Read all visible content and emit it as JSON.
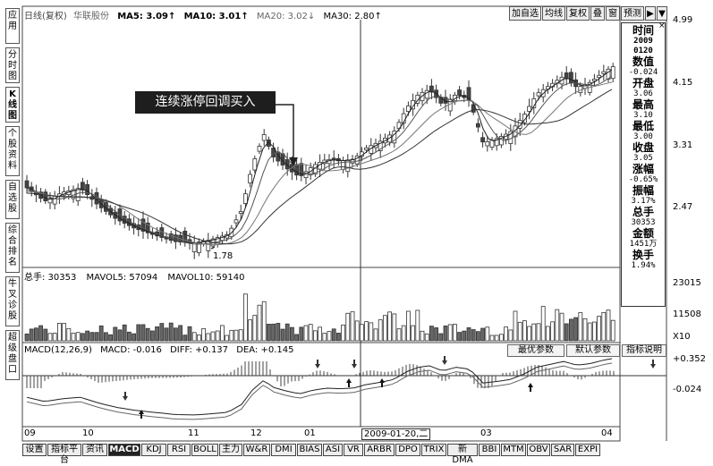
{
  "sidebar": {
    "items": [
      {
        "label": "应用",
        "active": false
      },
      {
        "label": "分时图",
        "active": false
      },
      {
        "label": "K线图",
        "active": true
      },
      {
        "label": "个股资料",
        "active": false
      },
      {
        "label": "自选股",
        "active": false
      },
      {
        "label": "综合排名",
        "active": false
      },
      {
        "label": "牛叉诊股",
        "active": false
      },
      {
        "label": "超级盘口",
        "active": false
      }
    ]
  },
  "chart_header": {
    "period": "日线(复权)",
    "stock": "华联股份",
    "ma5": "MA5: 3.09↑",
    "ma10": "MA10: 3.01↑",
    "ma20": "MA20: 3.02↓",
    "ma30": "MA30: 2.80↑"
  },
  "toolbar": {
    "buttons": [
      "加自选",
      "均线",
      "复权",
      "叠",
      "窗",
      "预测",
      "▶",
      "▼"
    ]
  },
  "price_axis": [
    "4.99",
    "4.15",
    "3.31",
    "2.47"
  ],
  "annotations": {
    "callout": "连续涨停回调买入",
    "low_price": "1.78"
  },
  "volume_header": {
    "total": "总手: 30353",
    "mavol5": "MAVOL5: 57094",
    "mavol10": "MAVOL10: 59140"
  },
  "volume_axis": [
    "23015",
    "11508",
    "X10"
  ],
  "macd_header": {
    "name": "MACD(12,26,9)",
    "macd": "MACD: -0.016",
    "diff": "DIFF: +0.137",
    "dea": "DEA: +0.145"
  },
  "macd_axis": [
    "+0.352",
    "-0.024"
  ],
  "panel_buttons": [
    "最优参数",
    "默认参数",
    "指标说明"
  ],
  "date_axis": {
    "ticks": [
      "09",
      "10",
      "11",
      "12",
      "01",
      "03",
      "04"
    ],
    "cursor_date": "2009-01-20,二"
  },
  "data_panel": {
    "items": [
      {
        "key": "时间",
        "value": "2009\n0120"
      },
      {
        "key": "数值",
        "value": "-0.024"
      },
      {
        "key": "开盘",
        "value": "3.06"
      },
      {
        "key": "最高",
        "value": "3.10"
      },
      {
        "key": "最低",
        "value": "3.00"
      },
      {
        "key": "收盘",
        "value": "3.05"
      },
      {
        "key": "涨幅",
        "value": "-0.65%"
      },
      {
        "key": "振幅",
        "value": "3.17%"
      },
      {
        "key": "总手",
        "value": "30353"
      },
      {
        "key": "金额",
        "value": "1451万"
      },
      {
        "key": "换手",
        "value": "1.94%"
      }
    ]
  },
  "bottom_tabs": {
    "items": [
      "设置",
      "指标平台",
      "资讯",
      "MACD",
      "KDJ",
      "RSI",
      "BOLL",
      "主力",
      "W&R",
      "DMI",
      "BIAS",
      "ASI",
      "VR",
      "ARBR",
      "DPO",
      "TRIX",
      "新DMA",
      "BBI",
      "MTM",
      "OBV",
      "SAR",
      "EXPI"
    ],
    "active": "MACD"
  },
  "colors": {
    "up": "#ffffff",
    "down": "#555555",
    "line": "#333333",
    "accent": "#222222"
  }
}
